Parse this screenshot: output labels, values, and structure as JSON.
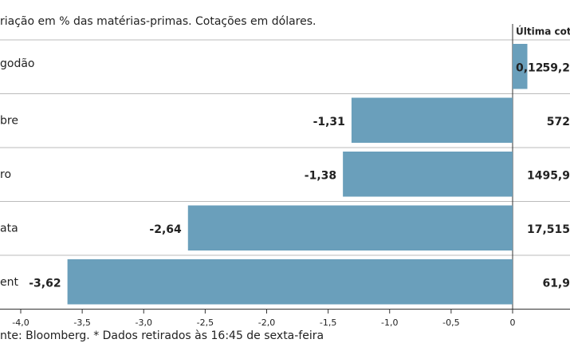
{
  "chart_data": {
    "type": "bar",
    "orientation": "horizontal",
    "title": "riação em % das matérias-primas. Cotações em dólares.",
    "quote_header": "Última cota",
    "categories": [
      "godão",
      "bre",
      "ro",
      "ata",
      "ent"
    ],
    "values": [
      0.12,
      -1.31,
      -1.38,
      -2.64,
      -3.62
    ],
    "value_labels": [
      "0,12",
      "-1,31",
      "-1,38",
      "-2,64",
      "-3,62"
    ],
    "quotes": [
      "59,2",
      "572",
      "1495,9",
      "17,515",
      "61,9"
    ],
    "color": "#6a9fbb",
    "xlim": [
      -4.0,
      0
    ],
    "xticks": [
      {
        "value": -4.0,
        "label": "-4,0"
      },
      {
        "value": -3.5,
        "label": "-3,5"
      },
      {
        "value": -3.0,
        "label": "-3,0"
      },
      {
        "value": -2.5,
        "label": "-2,5"
      },
      {
        "value": -2.0,
        "label": "-2,0"
      },
      {
        "value": -1.5,
        "label": "-1,5"
      },
      {
        "value": -1.0,
        "label": "-1,0"
      },
      {
        "value": -0.5,
        "label": "-0,5"
      },
      0
    ],
    "source": "nte: Bloomberg.  * Dados retirados às 16:45 de sexta-feira"
  }
}
